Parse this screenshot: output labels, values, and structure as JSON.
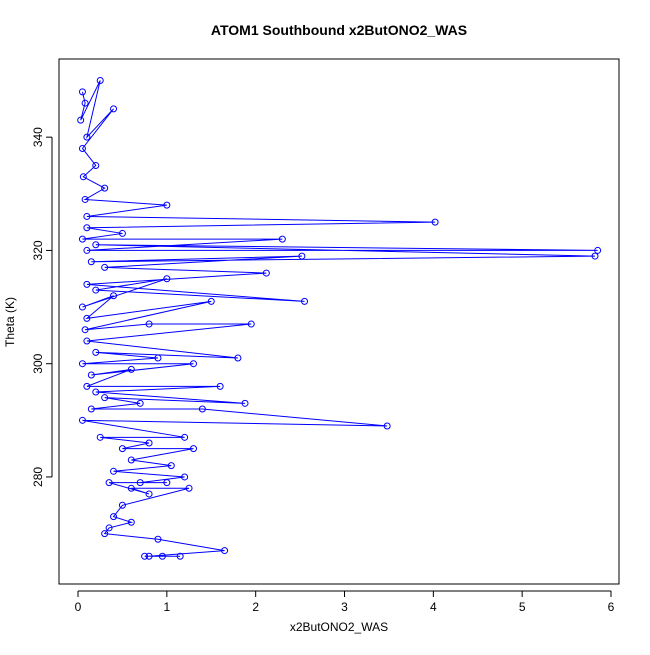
{
  "chart_data": {
    "type": "line",
    "markers": true,
    "title": "ATOM1 Southbound x2ButONO2_WAS",
    "x_label": "x2ButONO2_WAS",
    "y_label": "Theta (K)",
    "series": [
      {
        "name": "x2ButONO2_WAS",
        "color": "#0000ff",
        "x": [
          0.05,
          0.08,
          0.03,
          0.25,
          0.1,
          0.4,
          0.05,
          0.2,
          0.06,
          0.3,
          0.08,
          1.0,
          0.1,
          4.02,
          0.1,
          0.5,
          0.05,
          2.3,
          0.1,
          5.85,
          0.2,
          5.82,
          0.15,
          2.52,
          0.3,
          2.12,
          0.1,
          2.55,
          0.2,
          1.0,
          0.05,
          0.4,
          0.1,
          1.5,
          0.08,
          0.8,
          1.95,
          0.1,
          1.8,
          0.2,
          0.9,
          0.05,
          1.3,
          0.15,
          0.6,
          0.1,
          1.6,
          0.2,
          1.88,
          0.3,
          0.7,
          0.15,
          1.4,
          3.48,
          0.05,
          1.2,
          0.25,
          0.8,
          0.5,
          1.3,
          0.6,
          1.05,
          0.4,
          1.2,
          0.7,
          1.0,
          0.35,
          0.8,
          0.6,
          1.25,
          0.5,
          0.4,
          0.6,
          0.35,
          0.3,
          0.9,
          1.65,
          0.8,
          1.15,
          0.95,
          0.75
        ],
        "values": [
          348,
          346,
          343,
          350,
          340,
          345,
          338,
          335,
          333,
          331,
          329,
          328,
          326,
          325,
          324,
          323,
          322,
          322,
          320,
          320,
          321,
          319,
          318,
          319,
          317,
          316,
          314,
          311,
          313,
          315,
          310,
          312,
          308,
          311,
          306,
          307,
          307,
          304,
          301,
          302,
          301,
          300,
          300,
          298,
          299,
          296,
          296,
          295,
          293,
          294,
          293,
          292,
          292,
          289,
          290,
          287,
          287,
          286,
          285,
          285,
          283,
          282,
          281,
          280,
          279,
          279,
          279,
          277,
          278,
          278,
          275,
          273,
          272,
          271,
          270,
          269,
          267,
          266,
          266,
          266,
          266
        ]
      }
    ],
    "xlim": [
      -0.214,
      6.09
    ],
    "ylim": [
      261.1,
      353.8
    ],
    "xticks": [
      0,
      1,
      2,
      3,
      4,
      5,
      6
    ],
    "yticks": [
      280,
      300,
      320,
      340
    ],
    "grid": false
  }
}
